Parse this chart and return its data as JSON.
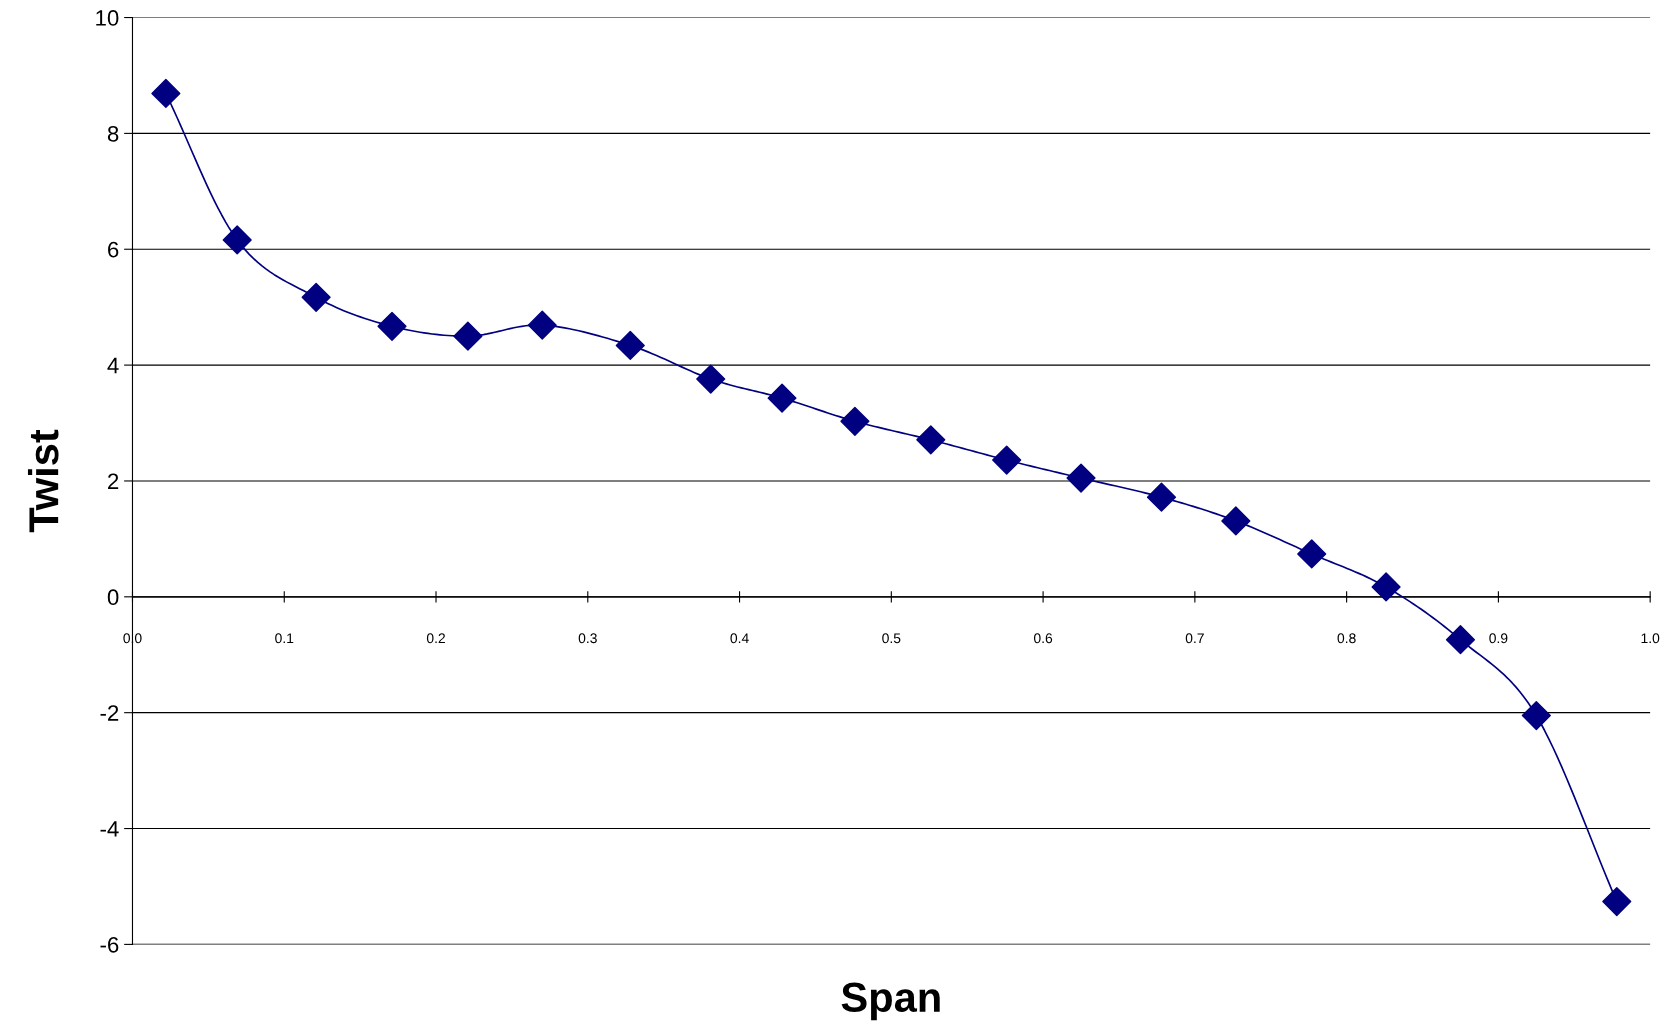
{
  "chart_data": {
    "type": "line",
    "xlabel": "Span",
    "ylabel": "Twist",
    "x": [
      0.022,
      0.069,
      0.121,
      0.171,
      0.221,
      0.27,
      0.328,
      0.381,
      0.428,
      0.476,
      0.526,
      0.576,
      0.625,
      0.678,
      0.727,
      0.777,
      0.826,
      0.875,
      0.925,
      0.978
    ],
    "series": [
      {
        "color": "#000080",
        "values": [
          8.69,
          6.16,
          5.17,
          4.67,
          4.5,
          4.69,
          4.34,
          3.76,
          3.43,
          3.03,
          2.71,
          2.36,
          2.05,
          1.72,
          1.31,
          0.74,
          0.17,
          -0.74,
          -2.05,
          -5.26
        ]
      }
    ],
    "xlim": [
      0,
      1
    ],
    "xticks": [
      {
        "value": 0,
        "label": "0.0"
      },
      0.1,
      0.2,
      0.3,
      0.4,
      0.5,
      0.6,
      0.7,
      0.8,
      0.9,
      {
        "value": 1,
        "label": "1.0"
      }
    ],
    "ylim": [
      -6,
      10
    ],
    "yticks": [
      -6,
      -4,
      -2,
      0,
      2,
      4,
      6,
      8,
      10
    ],
    "grid": "y",
    "marker": "diamond",
    "line_style": "solid",
    "legend": false
  }
}
